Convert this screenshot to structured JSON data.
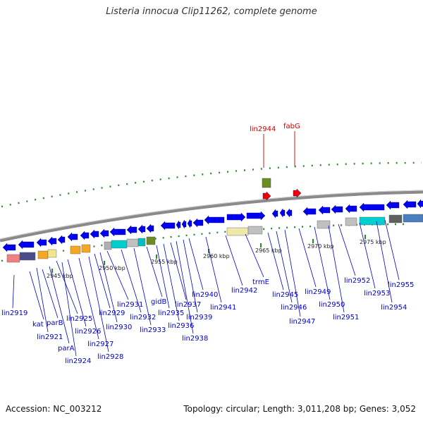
{
  "title": "Listeria innocua Clip11262, complete genome",
  "footer": {
    "accession": "Accession: NC_003212",
    "summary": "Topology: circular; Length: 3,011,208 bp; Genes: 3,052"
  },
  "colors": {
    "forward_gene": "#0000ee",
    "highlight_gene": "#ee0000",
    "label_blue": "#0000cc",
    "label_red": "#cc0000",
    "backbone": "#888888",
    "tick": "#228b22"
  },
  "scale_labels": [
    "2945 kbp",
    "2950 kbp",
    "2955 kbp",
    "2960 kbp",
    "2965 kbp",
    "2970 kbp",
    "2975 kbp"
  ],
  "highlight_labels": [
    "lin2944",
    "fabG"
  ],
  "gene_labels": [
    "lin2919",
    "kat",
    "parB",
    "lin2921",
    "parA",
    "lin2924",
    "lin2925",
    "lin2926",
    "lin2927",
    "lin2928",
    "lin2929",
    "lin2930",
    "lin2931",
    "lin2932",
    "lin2933",
    "gidB",
    "lin2935",
    "lin2936",
    "lin2937",
    "lin2938",
    "lin2939",
    "lin2940",
    "lin2941",
    "lin2942",
    "trmE",
    "lin2945",
    "lin2946",
    "lin2947",
    "lin2949",
    "lin2950",
    "lin2951",
    "lin2952",
    "lin2953",
    "lin2954",
    "lin2955"
  ]
}
